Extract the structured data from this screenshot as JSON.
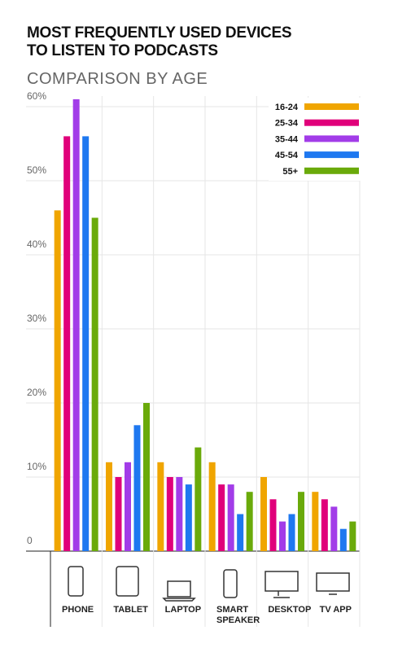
{
  "chart_data": {
    "type": "bar",
    "title": "MOST FREQUENTLY USED DEVICES TO LISTEN TO PODCASTS",
    "subtitle": "COMPARISON BY AGE",
    "categories": [
      "PHONE",
      "TABLET",
      "LAPTOP",
      "SMART SPEAKER",
      "DESKTOP",
      "TV APP"
    ],
    "series": [
      {
        "name": "16-24",
        "color": "#f0a500",
        "values": [
          46,
          12,
          12,
          12,
          10,
          8
        ]
      },
      {
        "name": "25-34",
        "color": "#e0007a",
        "values": [
          56,
          10,
          10,
          9,
          7,
          7
        ]
      },
      {
        "name": "35-44",
        "color": "#a23ce8",
        "values": [
          61,
          12,
          10,
          9,
          4,
          6
        ]
      },
      {
        "name": "45-54",
        "color": "#1e78f0",
        "values": [
          56,
          17,
          9,
          5,
          5,
          3
        ]
      },
      {
        "name": "55+",
        "color": "#6aaa0a",
        "values": [
          45,
          20,
          14,
          8,
          8,
          4
        ]
      }
    ],
    "ylim": [
      0,
      61
    ],
    "yticks": [
      0,
      {
        "value": 10,
        "label": "10%"
      },
      {
        "value": 20,
        "label": "20%"
      },
      {
        "value": 30,
        "label": "30%"
      },
      {
        "value": 40,
        "label": "40%"
      },
      {
        "value": 50,
        "label": "50%"
      },
      {
        "value": 60,
        "label": "60%"
      }
    ],
    "grid": true
  }
}
